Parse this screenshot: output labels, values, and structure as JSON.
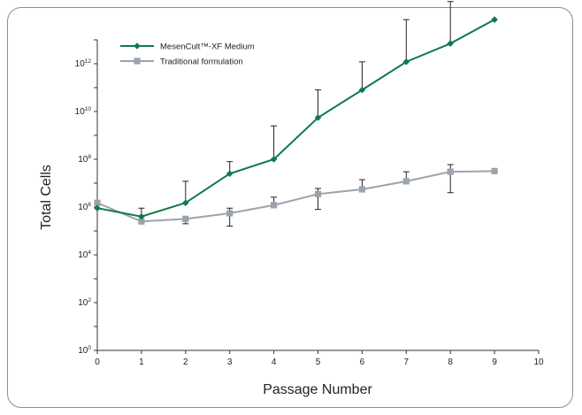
{
  "chart_data": {
    "type": "line",
    "xlabel": "Passage Number",
    "ylabel": "Total Cells",
    "x_ticks": [
      "0",
      "1",
      "2",
      "3",
      "4",
      "5",
      "6",
      "7",
      "8",
      "9",
      "10"
    ],
    "xlim": [
      0,
      10
    ],
    "y_scale": "log",
    "ylim_exponent": [
      0,
      13
    ],
    "y_ticks": [
      {
        "base": "10",
        "exp": "0"
      },
      {
        "base": "10",
        "exp": "2"
      },
      {
        "base": "10",
        "exp": "4"
      },
      {
        "base": "10",
        "exp": "6"
      },
      {
        "base": "10",
        "exp": "8"
      },
      {
        "base": "10",
        "exp": "10"
      },
      {
        "base": "10",
        "exp": "12"
      }
    ],
    "legend_position": "top-left",
    "series": [
      {
        "name": "MesenCult™-XF Medium",
        "color": "#0f7a4c",
        "marker": "diamond",
        "x": [
          0,
          1,
          2,
          3,
          4,
          5,
          6,
          7,
          8,
          9
        ],
        "y": [
          900000,
          400000,
          1500000,
          25000000,
          100000000,
          5500000000,
          80000000000,
          1200000000000,
          7000000000000,
          70000000000000
        ],
        "error_upper": [
          null,
          900000,
          12000000,
          80000000,
          2500000000,
          80000000000,
          1200000000000,
          70000000000000,
          400000000000000,
          null
        ]
      },
      {
        "name": "Traditional formulation",
        "color": "#9ba3ab",
        "marker": "square",
        "x": [
          0,
          1,
          2,
          3,
          4,
          5,
          6,
          7,
          8,
          9
        ],
        "y": [
          1500000,
          250000,
          320000,
          550000,
          1200000,
          3500000,
          5500000,
          12000000,
          30000000,
          32000000
        ],
        "error_upper": [
          null,
          null,
          null,
          900000,
          2600000,
          6000000,
          14000000,
          30000000,
          60000000,
          null
        ],
        "error_lower": [
          null,
          null,
          200000,
          160000,
          null,
          800000,
          null,
          null,
          4000000,
          null
        ]
      }
    ]
  }
}
